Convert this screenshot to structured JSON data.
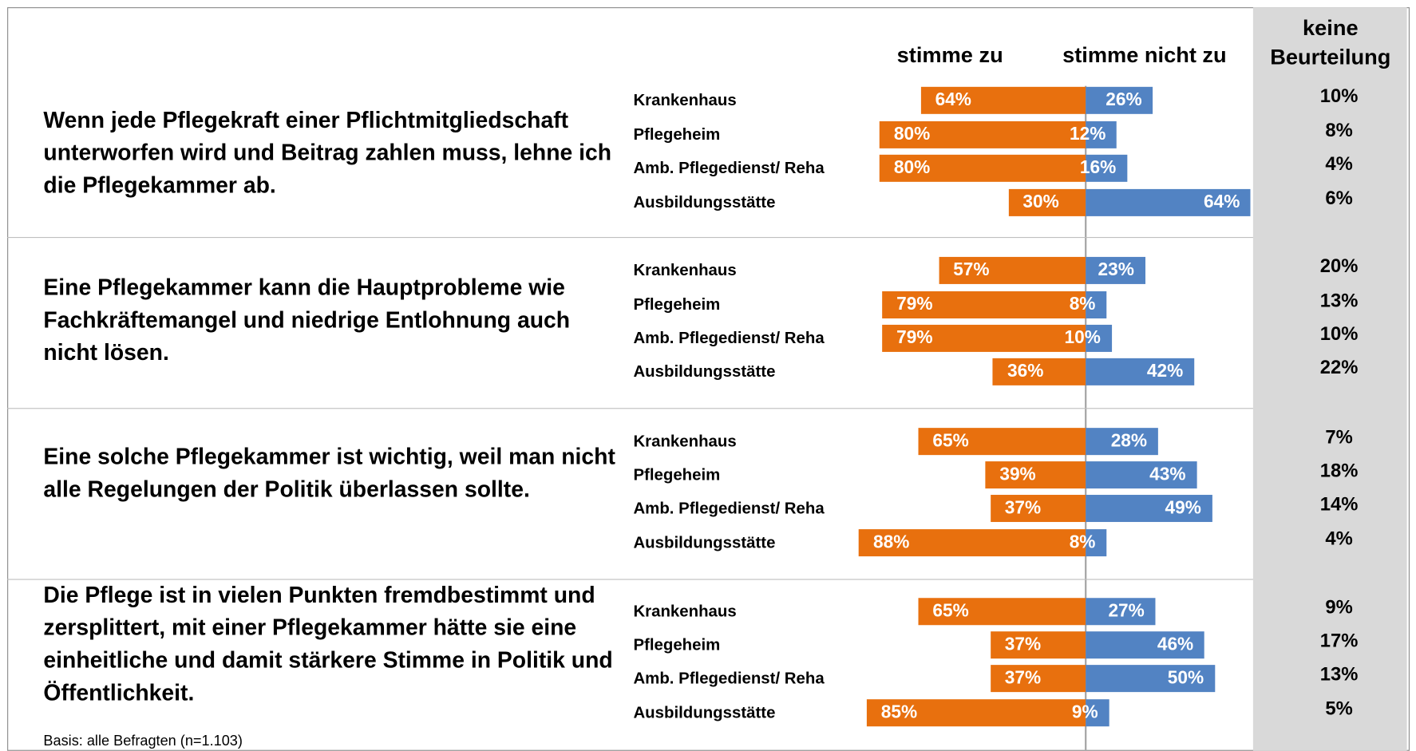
{
  "chart_data": {
    "type": "diverging_bar",
    "note": "Basis: alle Befragten (n=1.103)",
    "groups": [
      {
        "statement": "Wenn jede Pflegekraft einer Pflichtmitgliedschaft unterworfen wird und Beitrag zahlen muss, lehne ich die Pflegekammer ab.",
        "categories": [
          "Krankenhaus",
          "Pflegeheim",
          "Amb. Pflegedienst/ Reha",
          "Ausbildungsstätte"
        ]
      },
      {
        "statement": "Eine Pflegekammer kann die Hauptprobleme wie Fachkräftemangel und niedrige Entlohnung auch nicht lösen.",
        "categories": [
          "Krankenhaus",
          "Pflegeheim",
          "Amb. Pflegedienst/ Reha",
          "Ausbildungsstätte"
        ]
      },
      {
        "statement": "Eine solche Pflegekammer ist wichtig, weil man nicht alle Regelungen der Politik überlassen sollte.",
        "categories": [
          "Krankenhaus",
          "Pflegeheim",
          "Amb. Pflegedienst/ Reha",
          "Ausbildungsstätte"
        ]
      },
      {
        "statement": "Die Pflege ist in vielen Punkten fremdbestimmt und zersplittert, mit einer Pflegekammer hätte sie eine einheitliche und damit stärkere Stimme in Politik und Öffentlichkeit.",
        "categories": [
          "Krankenhaus",
          "Pflegeheim",
          "Amb. Pflegedienst/ Reha",
          "Ausbildungsstätte"
        ]
      }
    ],
    "series": [
      {
        "name": "stimme zu",
        "color": "#e8700e",
        "values": [
          [
            64,
            80,
            80,
            30
          ],
          [
            57,
            79,
            79,
            36
          ],
          [
            65,
            39,
            37,
            88
          ],
          [
            65,
            37,
            37,
            85
          ]
        ],
        "value_labels": [
          [
            "64%",
            "80%",
            "80%",
            "30%"
          ],
          [
            "57%",
            "79%",
            "79%",
            "36%"
          ],
          [
            "65%",
            "39%",
            "37%",
            "88%"
          ],
          [
            "65%",
            "37%",
            "37%",
            "85%"
          ]
        ]
      },
      {
        "name": "stimme nicht zu",
        "color": "#5283c3",
        "values": [
          [
            26,
            12,
            16,
            64
          ],
          [
            23,
            8,
            10,
            42
          ],
          [
            28,
            43,
            49,
            8
          ],
          [
            27,
            46,
            50,
            9
          ]
        ],
        "value_labels": [
          [
            "26%",
            "12%",
            "16%",
            "64%"
          ],
          [
            "23%",
            "8%",
            "10%",
            "42%"
          ],
          [
            "28%",
            "43%",
            "49%",
            "8%"
          ],
          [
            "27%",
            "46%",
            "50%",
            "9%"
          ]
        ]
      },
      {
        "name": "keine Beurteilung",
        "color": "#d9d9d9",
        "values": [
          [
            10,
            8,
            4,
            6
          ],
          [
            20,
            13,
            10,
            22
          ],
          [
            7,
            18,
            14,
            4
          ],
          [
            9,
            17,
            13,
            5
          ]
        ],
        "value_labels": [
          [
            "10%",
            "8%",
            "4%",
            "6%"
          ],
          [
            "20%",
            "13%",
            "10%",
            "22%"
          ],
          [
            "7%",
            "18%",
            "14%",
            "4%"
          ],
          [
            "9%",
            "17%",
            "13%",
            "5%"
          ]
        ]
      }
    ]
  }
}
